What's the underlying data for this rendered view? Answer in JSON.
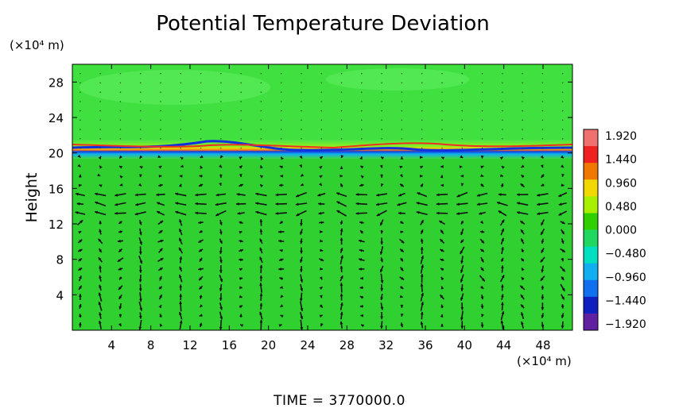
{
  "chart_data": {
    "type": "heatmap",
    "title": "Potential Temperature Deviation",
    "ylabel": "Height",
    "yunit": "(×10⁴ m)",
    "xunit": "(×10⁴ m)",
    "xlim": [
      0,
      51
    ],
    "ylim": [
      0,
      30
    ],
    "xticks": [
      4,
      8,
      12,
      16,
      20,
      24,
      28,
      32,
      36,
      40,
      44,
      48
    ],
    "yticks": [
      4,
      8,
      12,
      16,
      20,
      24,
      28
    ],
    "colorbar": {
      "ticks": [
        "1.920",
        "1.440",
        "0.960",
        "0.480",
        "0.000",
        "−0.480",
        "−0.960",
        "−1.440",
        "−1.920"
      ],
      "range": [
        -1.92,
        1.92
      ],
      "colors": [
        "#f07070",
        "#ee2020",
        "#f07800",
        "#f0d800",
        "#a8f000",
        "#30d000",
        "#20d860",
        "#00e0c0",
        "#10b0f0",
        "#1070f0",
        "#1020c0",
        "#6020a0"
      ]
    },
    "field_description": {
      "background": "#30d030",
      "stratosphere_band": "#40e040",
      "tropopause_height": 20.5
    },
    "wind_vectors": "cellular circulation below tropopause with strong horizontal jet near height 14",
    "footer": "TIME  =  3770000.0"
  }
}
